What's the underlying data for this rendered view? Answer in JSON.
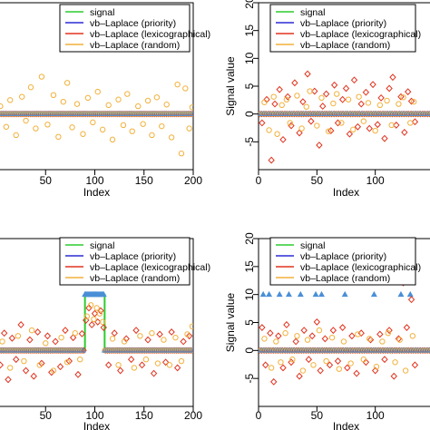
{
  "legend_entries": [
    {
      "label": "signal",
      "color": "#2ecc2e"
    },
    {
      "label": "vb–Laplace (priority)",
      "color": "#2b2bd6"
    },
    {
      "label": "vb–Laplace (lexicographical)",
      "color": "#e0331f"
    },
    {
      "label": "vb–Laplace (random)",
      "color": "#f2b13c"
    }
  ],
  "colors": {
    "signal": "#2ecc2e",
    "priority": "#2b2bd6",
    "lexicographical": "#e0331f",
    "random": "#f2b13c",
    "priority_triangle": "#4a8fd6",
    "axis": "#000000"
  },
  "chart_data": [
    {
      "type": "scatter",
      "panel": "top-left",
      "xlabel": "Index",
      "ylabel": "",
      "xlim": [
        0,
        200
      ],
      "ylim": [
        -10,
        20
      ],
      "x_ticks": [
        50,
        100,
        150,
        200
      ],
      "y_ticks": [],
      "legend_placement": "top-right",
      "series": [
        {
          "name": "signal",
          "marker": "line",
          "x": [
            0,
            200
          ],
          "values": [
            0,
            0
          ]
        },
        {
          "name": "vb–Laplace (random)",
          "marker": "circle",
          "x": [
            4,
            10,
            14,
            20,
            26,
            30,
            35,
            40,
            46,
            52,
            58,
            63,
            68,
            72,
            77,
            82,
            88,
            93,
            98,
            103,
            108,
            114,
            118,
            124,
            129,
            133,
            138,
            144,
            149,
            154,
            158,
            163,
            168,
            173,
            178,
            184,
            188,
            192,
            196,
            199
          ],
          "values": [
            1.4,
            -2.3,
            2.5,
            -3.8,
            3.1,
            -1.2,
            4.8,
            -2.6,
            6.7,
            -1.9,
            3.4,
            -4.1,
            2.2,
            5.6,
            -2.4,
            1.8,
            -3.6,
            2.9,
            -1.5,
            4.0,
            -2.8,
            1.6,
            -4.6,
            2.6,
            -2.0,
            3.6,
            -3.1,
            1.4,
            -1.8,
            2.4,
            -3.8,
            3.0,
            -2.2,
            1.7,
            -4.2,
            5.3,
            -7.1,
            4.6,
            -2.6,
            1.2
          ]
        }
      ]
    },
    {
      "type": "scatter",
      "panel": "top-right",
      "xlabel": "Index",
      "ylabel": "Signal value",
      "xlim": [
        0,
        150
      ],
      "ylim": [
        -10,
        20
      ],
      "x_ticks": [
        0,
        50,
        100
      ],
      "y_ticks": [
        20,
        15,
        10,
        5,
        0,
        -5
      ],
      "legend_placement": "top-right",
      "series": [
        {
          "name": "signal",
          "marker": "line",
          "x": [
            0,
            150
          ],
          "values": [
            0,
            0
          ]
        },
        {
          "name": "vb–Laplace (lexicographical)",
          "marker": "diamond",
          "x": [
            3,
            7,
            11,
            14,
            18,
            21,
            25,
            28,
            31,
            35,
            38,
            42,
            45,
            48,
            52,
            55,
            58,
            62,
            65,
            68,
            72,
            75,
            78,
            82,
            85,
            88,
            92,
            95,
            98,
            102,
            105,
            108,
            112,
            115,
            118,
            122,
            125,
            128,
            131,
            134
          ],
          "values": [
            -1.6,
            2.6,
            -8.3,
            1.8,
            4.4,
            -4.6,
            3.1,
            -2.1,
            5.6,
            -3.4,
            2.2,
            7.2,
            -1.3,
            4.1,
            -5.6,
            1.4,
            3.6,
            -3.0,
            5.2,
            -1.6,
            2.6,
            4.6,
            -3.6,
            6.1,
            -2.3,
            1.8,
            3.9,
            -2.6,
            5.3,
            -1.9,
            2.9,
            -4.4,
            4.6,
            6.6,
            -2.0,
            3.1,
            -3.3,
            4.0,
            2.3,
            -1.4
          ]
        },
        {
          "name": "vb–Laplace (random)",
          "marker": "circle",
          "x": [
            5,
            9,
            13,
            16,
            20,
            24,
            27,
            33,
            37,
            41,
            44,
            50,
            54,
            60,
            64,
            67,
            71,
            77,
            81,
            86,
            90,
            94,
            100,
            104,
            110,
            114,
            120,
            124,
            130,
            133
          ],
          "values": [
            2.1,
            -2.9,
            3.1,
            -3.6,
            1.6,
            2.6,
            -1.6,
            3.3,
            -2.6,
            1.3,
            4.1,
            -2.1,
            2.9,
            -3.1,
            1.9,
            3.6,
            -1.6,
            2.6,
            -2.8,
            3.1,
            -1.3,
            2.0,
            -3.0,
            1.6,
            2.4,
            -2.0,
            1.8,
            3.0,
            -1.6,
            2.2
          ]
        }
      ]
    },
    {
      "type": "scatter",
      "panel": "bottom-left",
      "xlabel": "Index",
      "ylabel": "",
      "xlim": [
        0,
        200
      ],
      "ylim": [
        -10,
        20
      ],
      "x_ticks": [
        50,
        100,
        150,
        200
      ],
      "y_ticks": [],
      "legend_placement": "top-right",
      "series": [
        {
          "name": "signal",
          "marker": "line",
          "x": [
            0,
            90,
            90,
            110,
            110,
            200
          ],
          "values": [
            0,
            0,
            10,
            10,
            0,
            0
          ]
        },
        {
          "name": "vb–Laplace (priority)",
          "marker": "triangle",
          "x": [
            90,
            91,
            92,
            93,
            94,
            95,
            96,
            97,
            98,
            99,
            100,
            101,
            102,
            103,
            104,
            105,
            106,
            107,
            108,
            109
          ],
          "values": [
            10,
            10,
            10,
            10,
            10,
            10,
            10,
            10,
            10,
            10,
            10,
            10,
            10,
            10,
            10,
            10,
            10,
            10,
            10,
            10
          ]
        },
        {
          "name": "vb–Laplace (lexicographical)",
          "marker": "diamond",
          "x": [
            4,
            8,
            12,
            16,
            20,
            25,
            30,
            34,
            38,
            42,
            46,
            52,
            56,
            60,
            65,
            70,
            74,
            78,
            83,
            87,
            91,
            94,
            97,
            100,
            103,
            106,
            109,
            114,
            120,
            126,
            132,
            137,
            142,
            148,
            154,
            160,
            166,
            172,
            178,
            184,
            190,
            196
          ],
          "values": [
            -2.6,
            3.1,
            -5.2,
            2.2,
            -1.6,
            4.6,
            -3.6,
            1.9,
            -4.6,
            3.3,
            -2.3,
            2.6,
            -3.9,
            1.6,
            -2.9,
            3.6,
            -1.9,
            2.3,
            -4.3,
            3.0,
            5.4,
            7.6,
            4.6,
            6.6,
            5.1,
            7.1,
            4.1,
            -2.6,
            3.1,
            -3.6,
            2.1,
            -1.6,
            3.6,
            -2.6,
            1.9,
            -4.1,
            2.9,
            -2.1,
            3.3,
            -3.1,
            1.6,
            2.6
          ]
        },
        {
          "name": "vb–Laplace (random)",
          "marker": "circle",
          "x": [
            6,
            14,
            22,
            28,
            36,
            44,
            50,
            58,
            66,
            72,
            80,
            85,
            92,
            96,
            99,
            102,
            105,
            108,
            118,
            124,
            130,
            140,
            146,
            152,
            158,
            164,
            170,
            176,
            182,
            188,
            194,
            199
          ],
          "values": [
            1.6,
            -3.1,
            2.6,
            -1.9,
            3.6,
            -2.6,
            1.3,
            -3.6,
            2.3,
            -2.1,
            3.1,
            -1.6,
            6.1,
            8.1,
            5.6,
            7.6,
            6.6,
            5.1,
            2.1,
            -2.6,
            1.6,
            -3.1,
            2.6,
            -1.6,
            3.1,
            -2.3,
            1.9,
            -2.6,
            2.3,
            -1.9,
            2.9,
            4.3
          ]
        }
      ]
    },
    {
      "type": "scatter",
      "panel": "bottom-right",
      "xlabel": "Index",
      "ylabel": "Signal value",
      "xlim": [
        0,
        150
      ],
      "ylim": [
        -10,
        20
      ],
      "x_ticks": [
        0,
        50,
        100
      ],
      "y_ticks": [
        20,
        15,
        10,
        5,
        0,
        -5
      ],
      "legend_placement": "top-right",
      "series": [
        {
          "name": "signal",
          "marker": "line",
          "x": [
            0,
            150
          ],
          "values": [
            0,
            0
          ]
        },
        {
          "name": "vb–Laplace (priority)",
          "marker": "triangle",
          "x": [
            4,
            9,
            18,
            26,
            36,
            49,
            54,
            74,
            99,
            122,
            130
          ],
          "values": [
            10,
            10,
            10,
            10,
            10,
            10,
            10,
            10,
            10,
            10,
            10
          ]
        },
        {
          "name": "vb–Laplace (lexicographical)",
          "marker": "diamond",
          "x": [
            3,
            6,
            10,
            13,
            17,
            21,
            24,
            28,
            32,
            35,
            39,
            43,
            46,
            50,
            53,
            57,
            61,
            64,
            68,
            72,
            76,
            80,
            84,
            88,
            92,
            96,
            100,
            104,
            108,
            112,
            116,
            120,
            124,
            127,
            131,
            134
          ],
          "values": [
            4.1,
            -2.6,
            3.1,
            -5.6,
            2.6,
            -3.1,
            4.6,
            -2.1,
            1.6,
            -4.6,
            3.6,
            -1.6,
            2.6,
            5.1,
            -3.6,
            2.1,
            -2.6,
            3.6,
            -1.9,
            4.1,
            -3.1,
            2.6,
            -4.1,
            3.1,
            -2.1,
            1.9,
            -3.6,
            2.9,
            -1.6,
            3.6,
            -4.6,
            2.1,
            12.1,
            4.1,
            9.1,
            -2.6
          ]
        },
        {
          "name": "vb–Laplace (random)",
          "marker": "circle",
          "x": [
            5,
            11,
            15,
            19,
            23,
            29,
            33,
            38,
            42,
            47,
            52,
            58,
            63,
            69,
            73,
            79,
            85,
            90,
            95,
            101,
            106,
            111,
            117,
            121,
            126,
            132
          ],
          "values": [
            2.1,
            -3.1,
            1.6,
            -2.1,
            3.1,
            -1.6,
            2.6,
            -3.6,
            1.9,
            -2.6,
            3.6,
            -1.9,
            2.3,
            -3.3,
            1.6,
            -2.3,
            2.9,
            -1.6,
            2.1,
            -2.9,
            1.6,
            3.1,
            -2.1,
            1.9,
            -3.6,
            2.6
          ]
        }
      ]
    }
  ]
}
